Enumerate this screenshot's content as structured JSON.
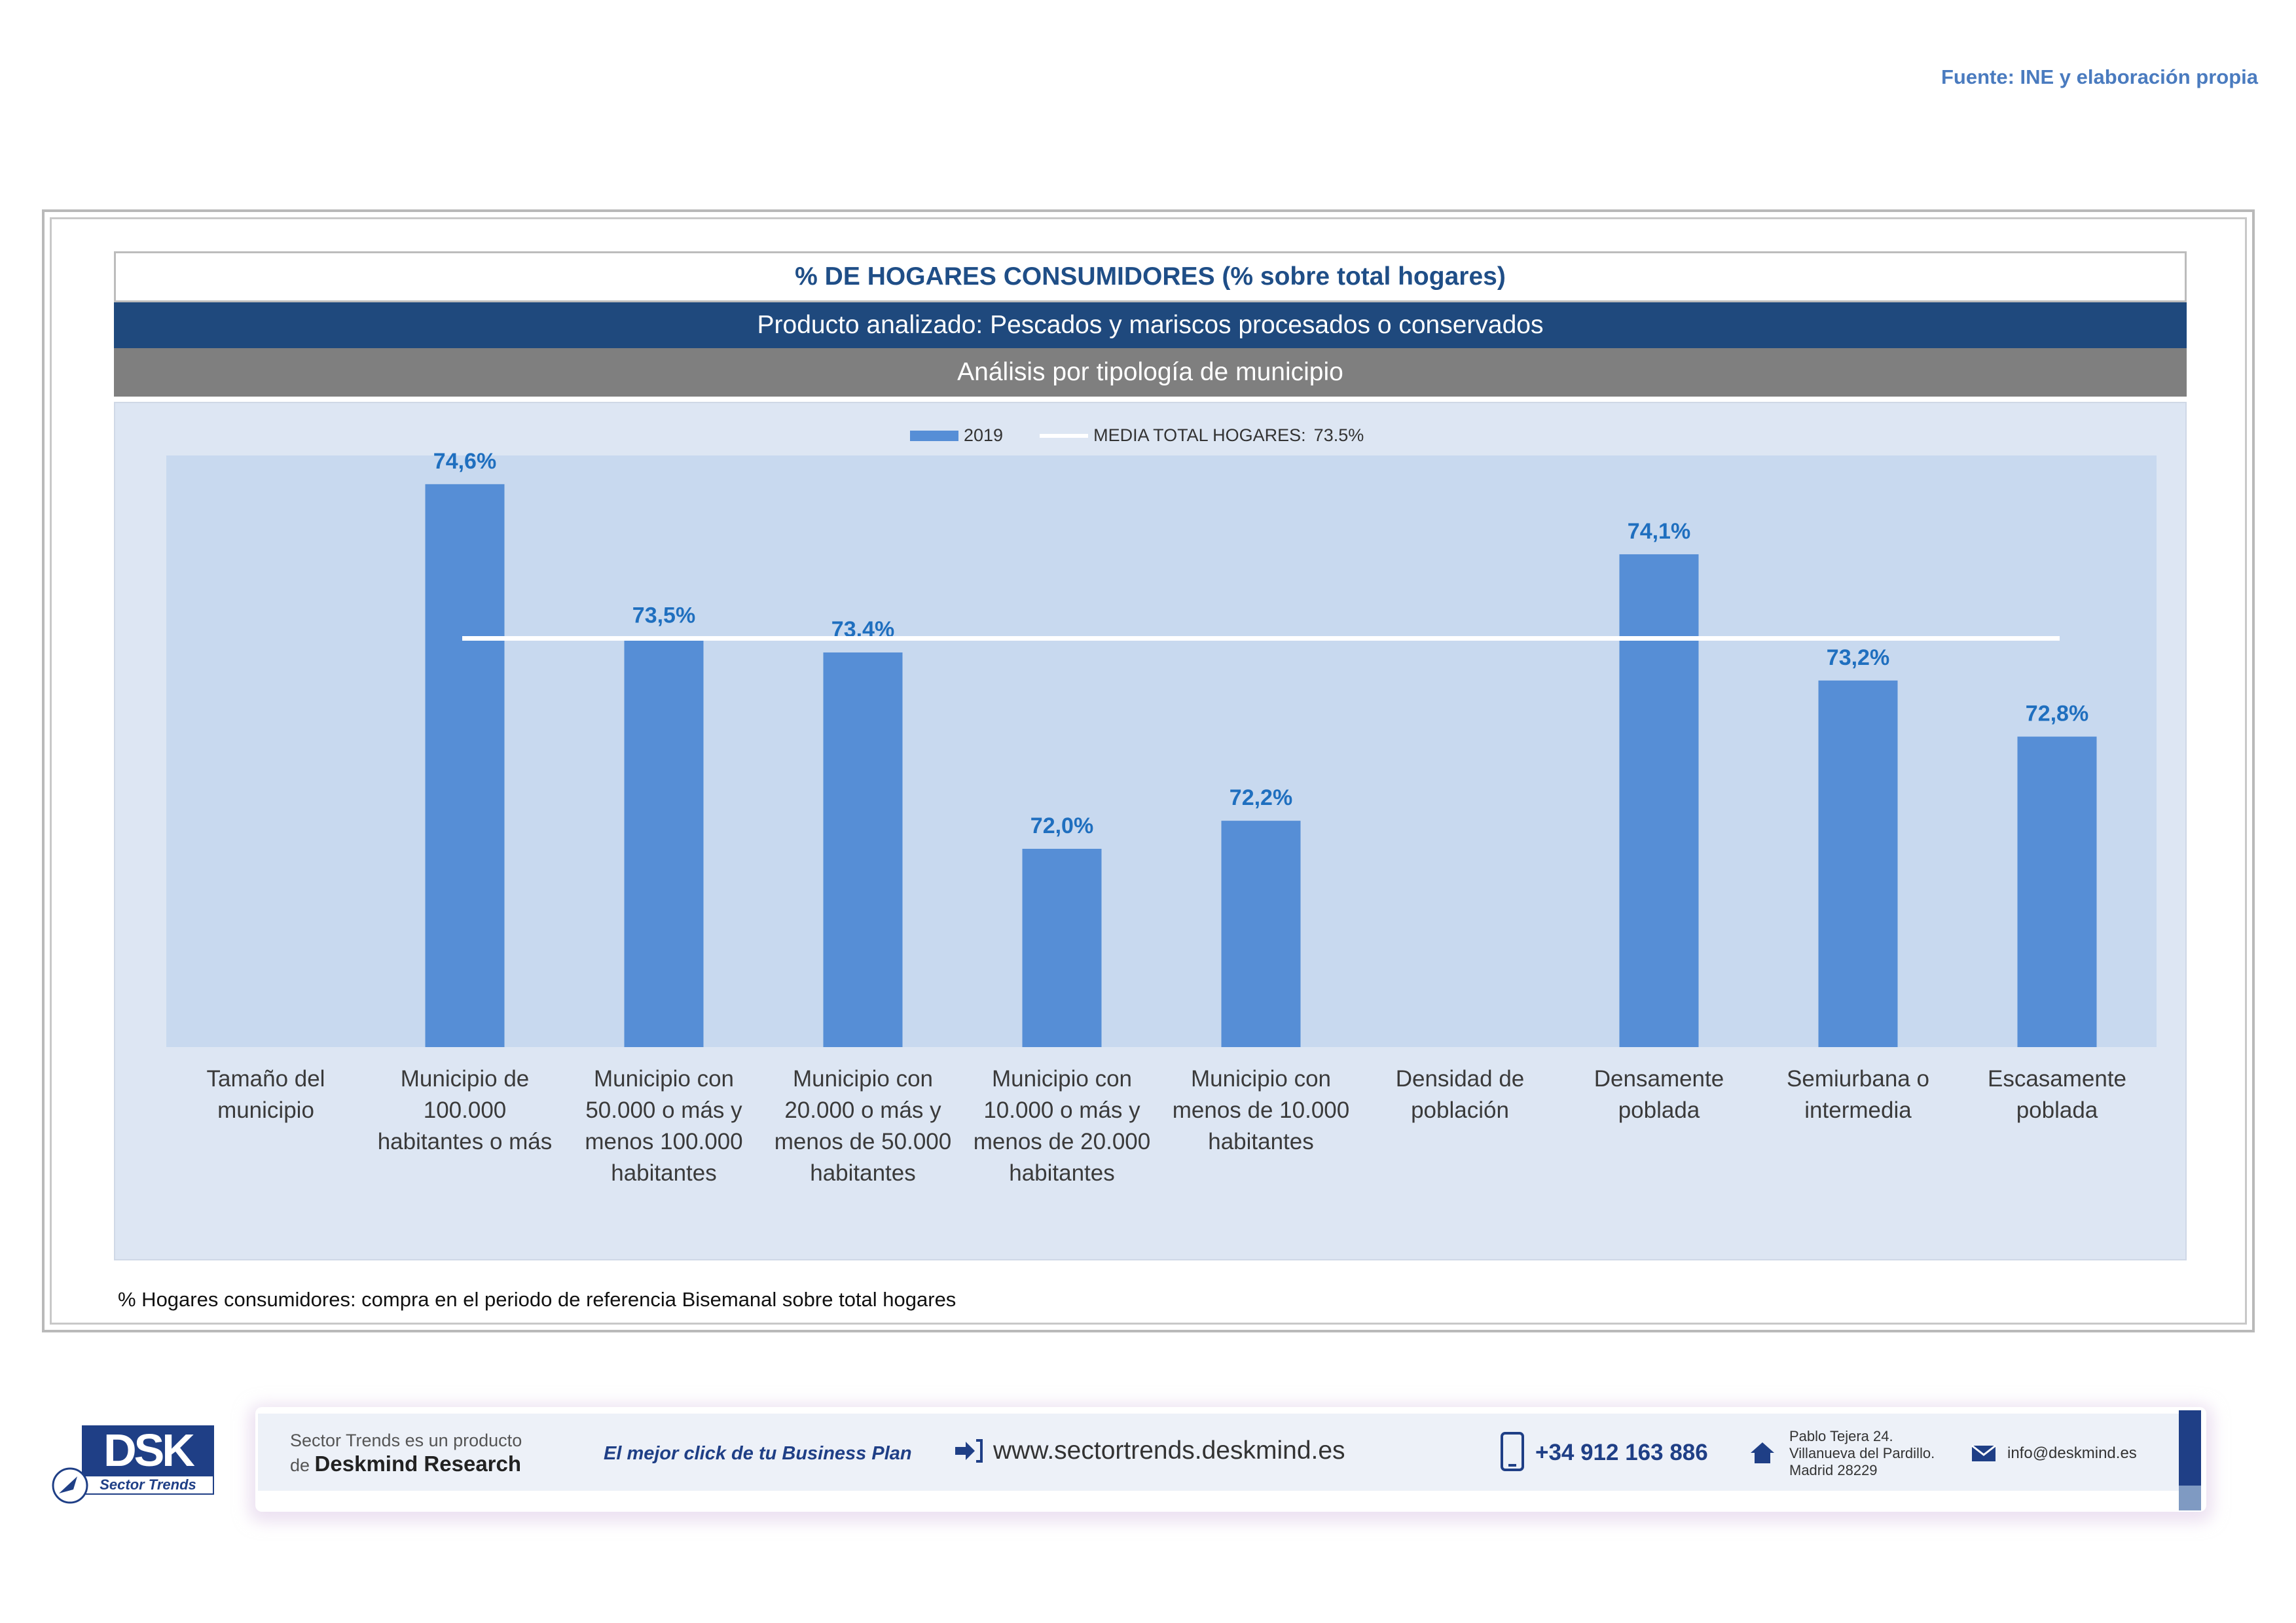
{
  "source": "Fuente: INE y elaboración propia",
  "header": {
    "title": "% DE HOGARES CONSUMIDORES (% sobre total hogares)",
    "product": "Producto analizado: Pescados y mariscos procesados o conservados",
    "analysis": "Análisis por tipología de municipio"
  },
  "legend": {
    "bar_label": "2019",
    "line_label": "MEDIA TOTAL  HOGARES:",
    "line_value": "73.5%"
  },
  "chart_data": {
    "type": "bar",
    "categories": [
      [
        "Tamaño del",
        "municipio"
      ],
      [
        "Municipio de",
        "100.000",
        "habitantes o más"
      ],
      [
        "Municipio con",
        "50.000 o más y",
        "menos 100.000",
        "habitantes"
      ],
      [
        "Municipio con",
        "20.000 o más y",
        "menos de 50.000",
        "habitantes"
      ],
      [
        "Municipio con",
        "10.000 o más y",
        "menos de 20.000",
        "habitantes"
      ],
      [
        "Municipio con",
        "menos de 10.000",
        "habitantes"
      ],
      [
        "Densidad de",
        "población"
      ],
      [
        "Densamente",
        "poblada"
      ],
      [
        "Semiurbana o",
        "intermedia"
      ],
      [
        "Escasamente",
        "poblada"
      ]
    ],
    "series": [
      {
        "name": "2019",
        "values": [
          null,
          74.6,
          73.5,
          73.4,
          72.0,
          72.2,
          null,
          74.1,
          73.2,
          72.8
        ],
        "labels": [
          "",
          "74,6%",
          "73,5%",
          "73,4%",
          "72,0%",
          "72,2%",
          "",
          "74,1%",
          "73,2%",
          "72,8%"
        ]
      }
    ],
    "average": 73.5,
    "colors": {
      "bar": "#568ed6",
      "average_line": "#ffffff",
      "data_label": "#1f6fbf"
    }
  },
  "note": "% Hogares consumidores: compra en el periodo de referencia Bisemanal sobre total hogares",
  "footer": {
    "logo_main": "DSK",
    "logo_sub": "Sector Trends",
    "product_line1": "Sector Trends es un producto",
    "product_line2_prefix": "de ",
    "product_line2_brand": "Deskmind Research",
    "slogan": "El mejor click de tu Business Plan",
    "website": "www.sectortrends.deskmind.es",
    "phone": "+34 912 163 886",
    "address_line1": "Pablo Tejera 24.",
    "address_line2": "Villanueva del Pardillo.",
    "address_line3": "Madrid 28229",
    "email": "info@deskmind.es"
  }
}
